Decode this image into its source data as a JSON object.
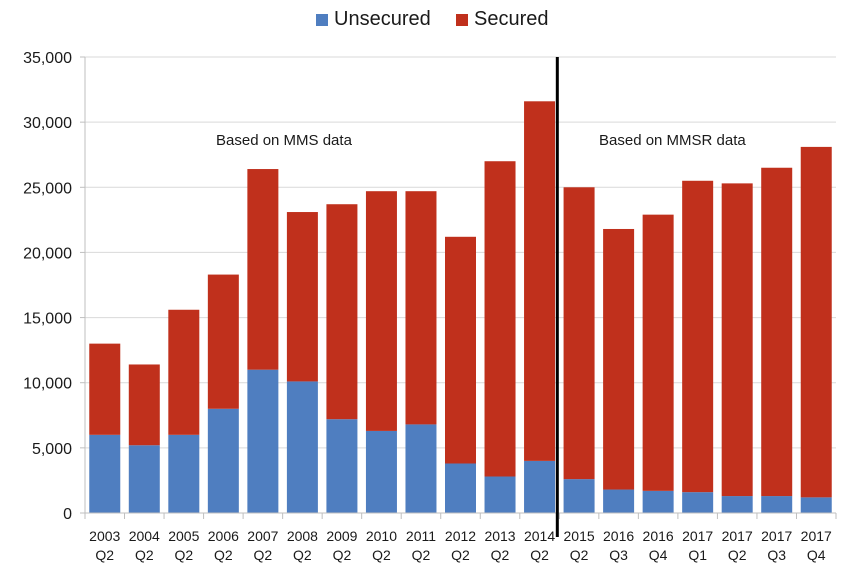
{
  "chart_data": {
    "type": "bar",
    "stacked": true,
    "categories": [
      [
        "2003",
        "Q2"
      ],
      [
        "2004",
        "Q2"
      ],
      [
        "2005",
        "Q2"
      ],
      [
        "2006",
        "Q2"
      ],
      [
        "2007",
        "Q2"
      ],
      [
        "2008",
        "Q2"
      ],
      [
        "2009",
        "Q2"
      ],
      [
        "2010",
        "Q2"
      ],
      [
        "2011",
        "Q2"
      ],
      [
        "2012",
        "Q2"
      ],
      [
        "2013",
        "Q2"
      ],
      [
        "2014",
        "Q2"
      ],
      [
        "2015",
        "Q2"
      ],
      [
        "2016",
        "Q3"
      ],
      [
        "2016",
        "Q4"
      ],
      [
        "2017",
        "Q1"
      ],
      [
        "2017",
        "Q2"
      ],
      [
        "2017",
        "Q3"
      ],
      [
        "2017",
        "Q4"
      ]
    ],
    "series": [
      {
        "name": "Unsecured",
        "color": "#4F7EC0",
        "values": [
          6000,
          5200,
          6000,
          8000,
          11000,
          10100,
          7200,
          6300,
          6800,
          3800,
          2800,
          4000,
          2600,
          1800,
          1700,
          1600,
          1300,
          1300,
          1200
        ]
      },
      {
        "name": "Secured",
        "color": "#C0301C",
        "values": [
          7000,
          6200,
          9600,
          10300,
          15400,
          13000,
          16500,
          18400,
          17900,
          17400,
          24200,
          27600,
          22400,
          20000,
          21200,
          23900,
          24000,
          25200,
          26900
        ]
      }
    ],
    "ylim": [
      0,
      35000
    ],
    "yticks": [
      "0",
      "5,000",
      "10,000",
      "15,000",
      "20,000",
      "25,000",
      "30,000",
      "35,000"
    ],
    "ytick_values": [
      0,
      5000,
      10000,
      15000,
      20000,
      25000,
      30000,
      35000
    ],
    "legend_position": "top-center",
    "gridlines": true,
    "annotations": [
      {
        "text": "Based on MMS data"
      },
      {
        "text": "Based on MMSR data"
      }
    ],
    "divider_after_index": 11,
    "xlabel": "",
    "ylabel": "",
    "title": ""
  }
}
